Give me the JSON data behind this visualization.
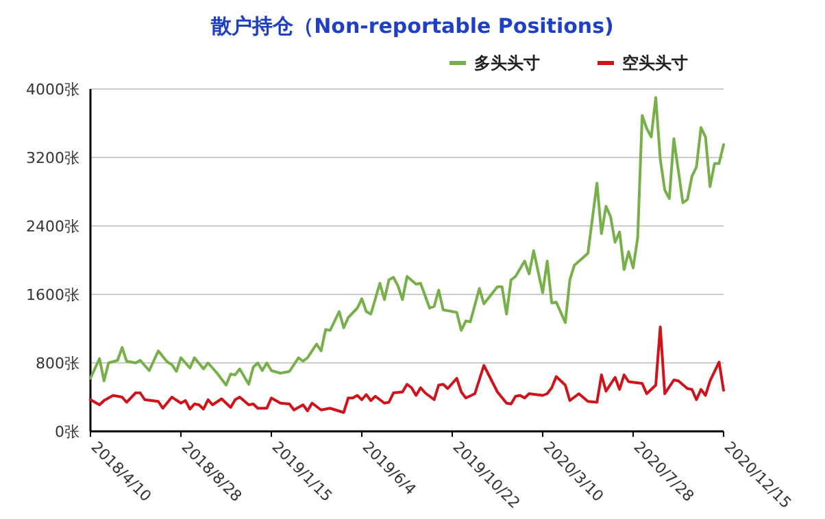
{
  "chart_data": {
    "type": "line",
    "title": "散户持仓（Non-reportable Positions)",
    "legend": "top right",
    "grid": "y",
    "marker": "none",
    "line_style": "solid",
    "xlim": [
      "2018-04-10",
      "2020-12-15"
    ],
    "xticks": [
      {
        "value": "2018-04-10",
        "label": "2018/4/10"
      },
      {
        "value": "2018-08-28",
        "label": "2018/8/28"
      },
      {
        "value": "2019-01-15",
        "label": "2019/1/15"
      },
      {
        "value": "2019-06-04",
        "label": "2019/6/4"
      },
      {
        "value": "2019-10-22",
        "label": "2019/10/22"
      },
      {
        "value": "2020-03-10",
        "label": "2020/3/10"
      },
      {
        "value": "2020-07-28",
        "label": "2020/7/28"
      },
      {
        "value": "2020-12-15",
        "label": "2020/12/15"
      }
    ],
    "ylim": [
      0,
      4000
    ],
    "yticks": [
      {
        "value": 0,
        "label": "0张"
      },
      {
        "value": 800,
        "label": "800张"
      },
      {
        "value": 1600,
        "label": "1600张"
      },
      {
        "value": 2400,
        "label": "2400张"
      },
      {
        "value": 3200,
        "label": "3200张"
      },
      {
        "value": 4000,
        "label": "4000张"
      }
    ],
    "series": [
      {
        "name": "多头头寸",
        "color": "#77b04a",
        "x": [
          "2018-04-10",
          "2018-04-24",
          "2018-05-01",
          "2018-05-08",
          "2018-05-22",
          "2018-05-29",
          "2018-06-05",
          "2018-06-19",
          "2018-06-26",
          "2018-07-10",
          "2018-07-24",
          "2018-08-07",
          "2018-08-14",
          "2018-08-21",
          "2018-08-28",
          "2018-09-11",
          "2018-09-18",
          "2018-10-02",
          "2018-10-09",
          "2018-10-23",
          "2018-11-06",
          "2018-11-13",
          "2018-11-20",
          "2018-11-27",
          "2018-12-11",
          "2018-12-18",
          "2018-12-25",
          "2019-01-01",
          "2019-01-08",
          "2019-01-15",
          "2019-01-29",
          "2019-02-12",
          "2019-02-26",
          "2019-03-05",
          "2019-03-12",
          "2019-03-26",
          "2019-04-02",
          "2019-04-09",
          "2019-04-16",
          "2019-04-30",
          "2019-05-07",
          "2019-05-14",
          "2019-05-28",
          "2019-06-04",
          "2019-06-11",
          "2019-06-18",
          "2019-07-02",
          "2019-07-09",
          "2019-07-16",
          "2019-07-23",
          "2019-07-30",
          "2019-08-06",
          "2019-08-13",
          "2019-08-27",
          "2019-09-03",
          "2019-09-17",
          "2019-09-24",
          "2019-10-01",
          "2019-10-08",
          "2019-10-29",
          "2019-11-05",
          "2019-11-12",
          "2019-11-19",
          "2019-12-03",
          "2019-12-10",
          "2019-12-31",
          "2020-01-07",
          "2020-01-14",
          "2020-01-21",
          "2020-01-28",
          "2020-02-11",
          "2020-02-18",
          "2020-02-25",
          "2020-03-10",
          "2020-03-17",
          "2020-03-24",
          "2020-03-31",
          "2020-04-14",
          "2020-04-21",
          "2020-04-28",
          "2020-05-19",
          "2020-06-02",
          "2020-06-09",
          "2020-06-16",
          "2020-06-23",
          "2020-06-30",
          "2020-07-07",
          "2020-07-14",
          "2020-07-21",
          "2020-07-28",
          "2020-08-04",
          "2020-08-11",
          "2020-08-18",
          "2020-08-25",
          "2020-09-01",
          "2020-09-08",
          "2020-09-15",
          "2020-09-22",
          "2020-09-29",
          "2020-10-13",
          "2020-10-20",
          "2020-10-27",
          "2020-11-03",
          "2020-11-10",
          "2020-11-17",
          "2020-11-24",
          "2020-12-01",
          "2020-12-08",
          "2020-12-15"
        ],
        "values": [
          620,
          850,
          590,
          800,
          830,
          980,
          820,
          800,
          830,
          710,
          940,
          810,
          780,
          700,
          860,
          740,
          860,
          730,
          800,
          680,
          540,
          670,
          660,
          730,
          550,
          750,
          800,
          710,
          800,
          710,
          680,
          700,
          860,
          820,
          860,
          1020,
          940,
          1190,
          1180,
          1400,
          1210,
          1330,
          1440,
          1550,
          1400,
          1370,
          1730,
          1540,
          1770,
          1800,
          1700,
          1540,
          1810,
          1720,
          1730,
          1440,
          1460,
          1650,
          1420,
          1390,
          1180,
          1290,
          1280,
          1670,
          1490,
          1690,
          1690,
          1370,
          1770,
          1810,
          1990,
          1840,
          2110,
          1620,
          1990,
          1500,
          1510,
          1270,
          1770,
          1940,
          2080,
          2900,
          2310,
          2630,
          2510,
          2210,
          2330,
          1890,
          2100,
          1910,
          2260,
          3690,
          3540,
          3440,
          3900,
          3180,
          2820,
          2720,
          3420,
          2670,
          2710,
          2980,
          3090,
          3550,
          3440,
          2860,
          3130,
          3130,
          3350
        ]
      },
      {
        "name": "空头头寸",
        "color": "#d0121b",
        "x": [
          "2018-04-10",
          "2018-04-24",
          "2018-05-01",
          "2018-05-15",
          "2018-05-22",
          "2018-05-29",
          "2018-06-05",
          "2018-06-19",
          "2018-06-26",
          "2018-07-03",
          "2018-07-24",
          "2018-07-31",
          "2018-08-14",
          "2018-08-28",
          "2018-09-04",
          "2018-09-11",
          "2018-09-18",
          "2018-09-25",
          "2018-10-02",
          "2018-10-09",
          "2018-10-16",
          "2018-10-30",
          "2018-11-13",
          "2018-11-20",
          "2018-11-27",
          "2018-12-11",
          "2018-12-18",
          "2018-12-25",
          "2019-01-08",
          "2019-01-15",
          "2019-01-29",
          "2019-02-12",
          "2019-02-19",
          "2019-02-26",
          "2019-03-05",
          "2019-03-12",
          "2019-03-19",
          "2019-04-02",
          "2019-04-16",
          "2019-05-07",
          "2019-05-14",
          "2019-05-21",
          "2019-05-28",
          "2019-06-04",
          "2019-06-11",
          "2019-06-18",
          "2019-06-25",
          "2019-07-09",
          "2019-07-16",
          "2019-07-23",
          "2019-08-06",
          "2019-08-13",
          "2019-08-20",
          "2019-08-27",
          "2019-09-03",
          "2019-09-10",
          "2019-09-24",
          "2019-10-01",
          "2019-10-08",
          "2019-10-15",
          "2019-10-29",
          "2019-11-05",
          "2019-11-12",
          "2019-11-26",
          "2019-12-10",
          "2019-12-31",
          "2020-01-14",
          "2020-01-21",
          "2020-01-28",
          "2020-02-04",
          "2020-02-11",
          "2020-02-18",
          "2020-03-10",
          "2020-03-17",
          "2020-03-24",
          "2020-03-31",
          "2020-04-14",
          "2020-04-21",
          "2020-05-05",
          "2020-05-19",
          "2020-06-02",
          "2020-06-09",
          "2020-06-16",
          "2020-06-30",
          "2020-07-07",
          "2020-07-14",
          "2020-07-21",
          "2020-08-11",
          "2020-08-18",
          "2020-09-01",
          "2020-09-08",
          "2020-09-15",
          "2020-09-29",
          "2020-10-06",
          "2020-10-20",
          "2020-10-27",
          "2020-11-03",
          "2020-11-10",
          "2020-11-17",
          "2020-11-24",
          "2020-12-08",
          "2020-12-15"
        ],
        "values": [
          370,
          310,
          360,
          420,
          410,
          400,
          340,
          450,
          450,
          370,
          350,
          270,
          400,
          330,
          360,
          260,
          320,
          310,
          260,
          370,
          310,
          380,
          280,
          370,
          400,
          310,
          320,
          270,
          270,
          390,
          330,
          320,
          250,
          280,
          310,
          240,
          330,
          250,
          270,
          220,
          390,
          390,
          420,
          370,
          430,
          360,
          410,
          330,
          340,
          450,
          460,
          550,
          510,
          420,
          510,
          450,
          370,
          540,
          550,
          500,
          620,
          460,
          390,
          440,
          770,
          460,
          330,
          320,
          410,
          420,
          390,
          440,
          420,
          440,
          510,
          640,
          540,
          360,
          440,
          350,
          340,
          660,
          470,
          630,
          490,
          660,
          580,
          560,
          440,
          540,
          1220,
          440,
          600,
          590,
          500,
          490,
          370,
          490,
          420,
          590,
          810,
          480
        ]
      }
    ]
  }
}
